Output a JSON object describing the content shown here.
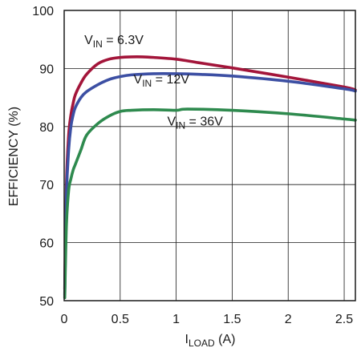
{
  "chart_data": {
    "type": "line",
    "title": "",
    "xlabel": {
      "main": "I",
      "sub": "LOAD",
      "unit": " (A)"
    },
    "ylabel": "EFFICIENCY (%)",
    "xlim": [
      0,
      2.6
    ],
    "ylim": [
      50,
      100
    ],
    "grid": true,
    "legend": "none",
    "x_ticks": [
      "0",
      "0.5",
      "1",
      "1.5",
      "2",
      "2.5"
    ],
    "x_tick_values": [
      0,
      0.5,
      1,
      1.5,
      2,
      2.5
    ],
    "y_ticks": [
      "50",
      "60",
      "70",
      "80",
      "90",
      "100"
    ],
    "y_tick_values": [
      50,
      60,
      70,
      80,
      90,
      100
    ],
    "colors": {
      "grid": "#1a1a1a",
      "frame": "#1a1a1a"
    },
    "series": [
      {
        "name": "6.3V",
        "label": {
          "prefix": "V",
          "sub": "IN",
          "text": " = 6.3V",
          "at": [
            0.18,
            94.2
          ]
        },
        "color": "#a3153a",
        "x": [
          0.005,
          0.02,
          0.04,
          0.06,
          0.08,
          0.1,
          0.15,
          0.2,
          0.3,
          0.4,
          0.5,
          0.6,
          0.7,
          0.8,
          1.0,
          1.2,
          1.5,
          2.0,
          2.5,
          2.6
        ],
        "y": [
          52,
          70,
          78.5,
          82,
          84,
          85.5,
          87.5,
          89,
          90.8,
          91.6,
          91.9,
          92.0,
          92.0,
          91.9,
          91.6,
          91.0,
          90.1,
          88.5,
          86.8,
          86.3
        ]
      },
      {
        "name": "12V",
        "label": {
          "prefix": "V",
          "sub": "IN",
          "text": " = 12V",
          "at": [
            0.62,
            87.4
          ]
        },
        "color": "#3c4fa3",
        "x": [
          0.005,
          0.02,
          0.04,
          0.06,
          0.08,
          0.1,
          0.15,
          0.2,
          0.3,
          0.4,
          0.5,
          0.6,
          0.8,
          1.0,
          1.2,
          1.5,
          2.0,
          2.5,
          2.6
        ],
        "y": [
          51,
          68,
          76,
          80,
          82,
          83.3,
          85,
          86,
          87.2,
          88.1,
          88.6,
          88.9,
          89.1,
          89.1,
          89.0,
          88.7,
          87.8,
          86.5,
          86.1
        ]
      },
      {
        "name": "36V",
        "label": {
          "prefix": "V",
          "sub": "IN",
          "text": " = 36V",
          "at": [
            0.92,
            80.2
          ]
        },
        "color": "#2e8a4e",
        "x": [
          0.005,
          0.02,
          0.04,
          0.06,
          0.08,
          0.1,
          0.15,
          0.2,
          0.3,
          0.4,
          0.5,
          0.6,
          0.8,
          1.0,
          1.1,
          1.5,
          2.0,
          2.5,
          2.6
        ],
        "y": [
          50.5,
          63,
          69,
          71,
          72.5,
          73.5,
          76,
          78.5,
          80.5,
          81.8,
          82.6,
          82.8,
          82.9,
          82.8,
          83.0,
          82.8,
          82.2,
          81.3,
          81.1
        ]
      }
    ]
  }
}
